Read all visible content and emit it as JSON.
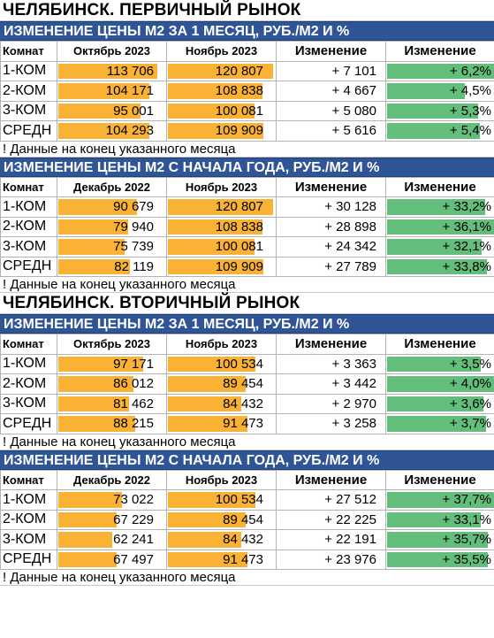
{
  "accent_colors": {
    "header_bg": "#2f5597",
    "price_bar": "#f9b233",
    "change_bar": "#63be7b"
  },
  "markets": [
    {
      "title": "ЧЕЛЯБИНСК. ПЕРВИЧНЫЙ РЫНОК",
      "sections": [
        {
          "header": "ИЗМЕНЕНИЕ ЦЕНЫ М2 ЗА 1 МЕСЯЦ, РУБ./М2 И %",
          "columns": [
            "Комнат",
            "Октябрь 2023",
            "Ноябрь 2023",
            "Изменение",
            "Изменение"
          ],
          "rows": [
            {
              "room": "1-КОМ",
              "p1": "113 706",
              "p2": "120 807",
              "abs": "+ 7 101",
              "pct": "+ 6,2%",
              "p1_val": 113706,
              "p2_val": 120807,
              "pct_val": 6.2
            },
            {
              "room": "2-КОМ",
              "p1": "104 171",
              "p2": "108 838",
              "abs": "+ 4 667",
              "pct": "+ 4,5%",
              "p1_val": 104171,
              "p2_val": 108838,
              "pct_val": 4.5
            },
            {
              "room": "3-КОМ",
              "p1": "95 001",
              "p2": "100 081",
              "abs": "+ 5 080",
              "pct": "+ 5,3%",
              "p1_val": 95001,
              "p2_val": 100081,
              "pct_val": 5.3
            },
            {
              "room": "СРЕДН",
              "p1": "104 293",
              "p2": "109 909",
              "abs": "+ 5 616",
              "pct": "+ 5,4%",
              "p1_val": 104293,
              "p2_val": 109909,
              "pct_val": 5.4
            }
          ],
          "note": "! Данные на конец указанного месяца"
        },
        {
          "header": "ИЗМЕНЕНИЕ ЦЕНЫ М2 С НАЧАЛА ГОДА, РУБ./М2 И %",
          "columns": [
            "Комнат",
            "Декабрь 2022",
            "Ноябрь 2023",
            "Изменение",
            "Изменение"
          ],
          "rows": [
            {
              "room": "1-КОМ",
              "p1": "90 679",
              "p2": "120 807",
              "abs": "+ 30 128",
              "pct": "+ 33,2%",
              "p1_val": 90679,
              "p2_val": 120807,
              "pct_val": 33.2
            },
            {
              "room": "2-КОМ",
              "p1": "79 940",
              "p2": "108 838",
              "abs": "+ 28 898",
              "pct": "+ 36,1%",
              "p1_val": 79940,
              "p2_val": 108838,
              "pct_val": 36.1
            },
            {
              "room": "3-КОМ",
              "p1": "75 739",
              "p2": "100 081",
              "abs": "+ 24 342",
              "pct": "+ 32,1%",
              "p1_val": 75739,
              "p2_val": 100081,
              "pct_val": 32.1
            },
            {
              "room": "СРЕДН",
              "p1": "82 119",
              "p2": "109 909",
              "abs": "+ 27 789",
              "pct": "+ 33,8%",
              "p1_val": 82119,
              "p2_val": 109909,
              "pct_val": 33.8
            }
          ],
          "note": "! Данные на конец указанного месяца"
        }
      ]
    },
    {
      "title": "ЧЕЛЯБИНСК. ВТОРИЧНЫЙ РЫНОК",
      "sections": [
        {
          "header": "ИЗМЕНЕНИЕ ЦЕНЫ М2 ЗА 1 МЕСЯЦ, РУБ./М2 И %",
          "columns": [
            "Комнат",
            "Октябрь 2023",
            "Ноябрь 2023",
            "Изменение",
            "Изменение"
          ],
          "rows": [
            {
              "room": "1-КОМ",
              "p1": "97 171",
              "p2": "100 534",
              "abs": "+ 3 363",
              "pct": "+ 3,5%",
              "p1_val": 97171,
              "p2_val": 100534,
              "pct_val": 3.5
            },
            {
              "room": "2-КОМ",
              "p1": "86 012",
              "p2": "89 454",
              "abs": "+ 3 442",
              "pct": "+ 4,0%",
              "p1_val": 86012,
              "p2_val": 89454,
              "pct_val": 4.0
            },
            {
              "room": "3-КОМ",
              "p1": "81 462",
              "p2": "84 432",
              "abs": "+ 2 970",
              "pct": "+ 3,6%",
              "p1_val": 81462,
              "p2_val": 84432,
              "pct_val": 3.6
            },
            {
              "room": "СРЕДН",
              "p1": "88 215",
              "p2": "91 473",
              "abs": "+ 3 258",
              "pct": "+ 3,7%",
              "p1_val": 88215,
              "p2_val": 91473,
              "pct_val": 3.7
            }
          ],
          "note": "! Данные на конец указанного месяца"
        },
        {
          "header": "ИЗМЕНЕНИЕ ЦЕНЫ М2 С НАЧАЛА ГОДА, РУБ./М2 И %",
          "columns": [
            "Комнат",
            "Декабрь 2022",
            "Ноябрь 2023",
            "Изменение",
            "Изменение"
          ],
          "rows": [
            {
              "room": "1-КОМ",
              "p1": "73 022",
              "p2": "100 534",
              "abs": "+ 27 512",
              "pct": "+ 37,7%",
              "p1_val": 73022,
              "p2_val": 100534,
              "pct_val": 37.7
            },
            {
              "room": "2-КОМ",
              "p1": "67 229",
              "p2": "89 454",
              "abs": "+ 22 225",
              "pct": "+ 33,1%",
              "p1_val": 67229,
              "p2_val": 89454,
              "pct_val": 33.1
            },
            {
              "room": "3-КОМ",
              "p1": "62 241",
              "p2": "84 432",
              "abs": "+ 22 191",
              "pct": "+ 35,7%",
              "p1_val": 62241,
              "p2_val": 84432,
              "pct_val": 35.7
            },
            {
              "room": "СРЕДН",
              "p1": "67 497",
              "p2": "91 473",
              "abs": "+ 23 976",
              "pct": "+ 35,5%",
              "p1_val": 67497,
              "p2_val": 91473,
              "pct_val": 35.5
            }
          ],
          "note": "! Данные на конец указанного месяца"
        }
      ]
    }
  ]
}
